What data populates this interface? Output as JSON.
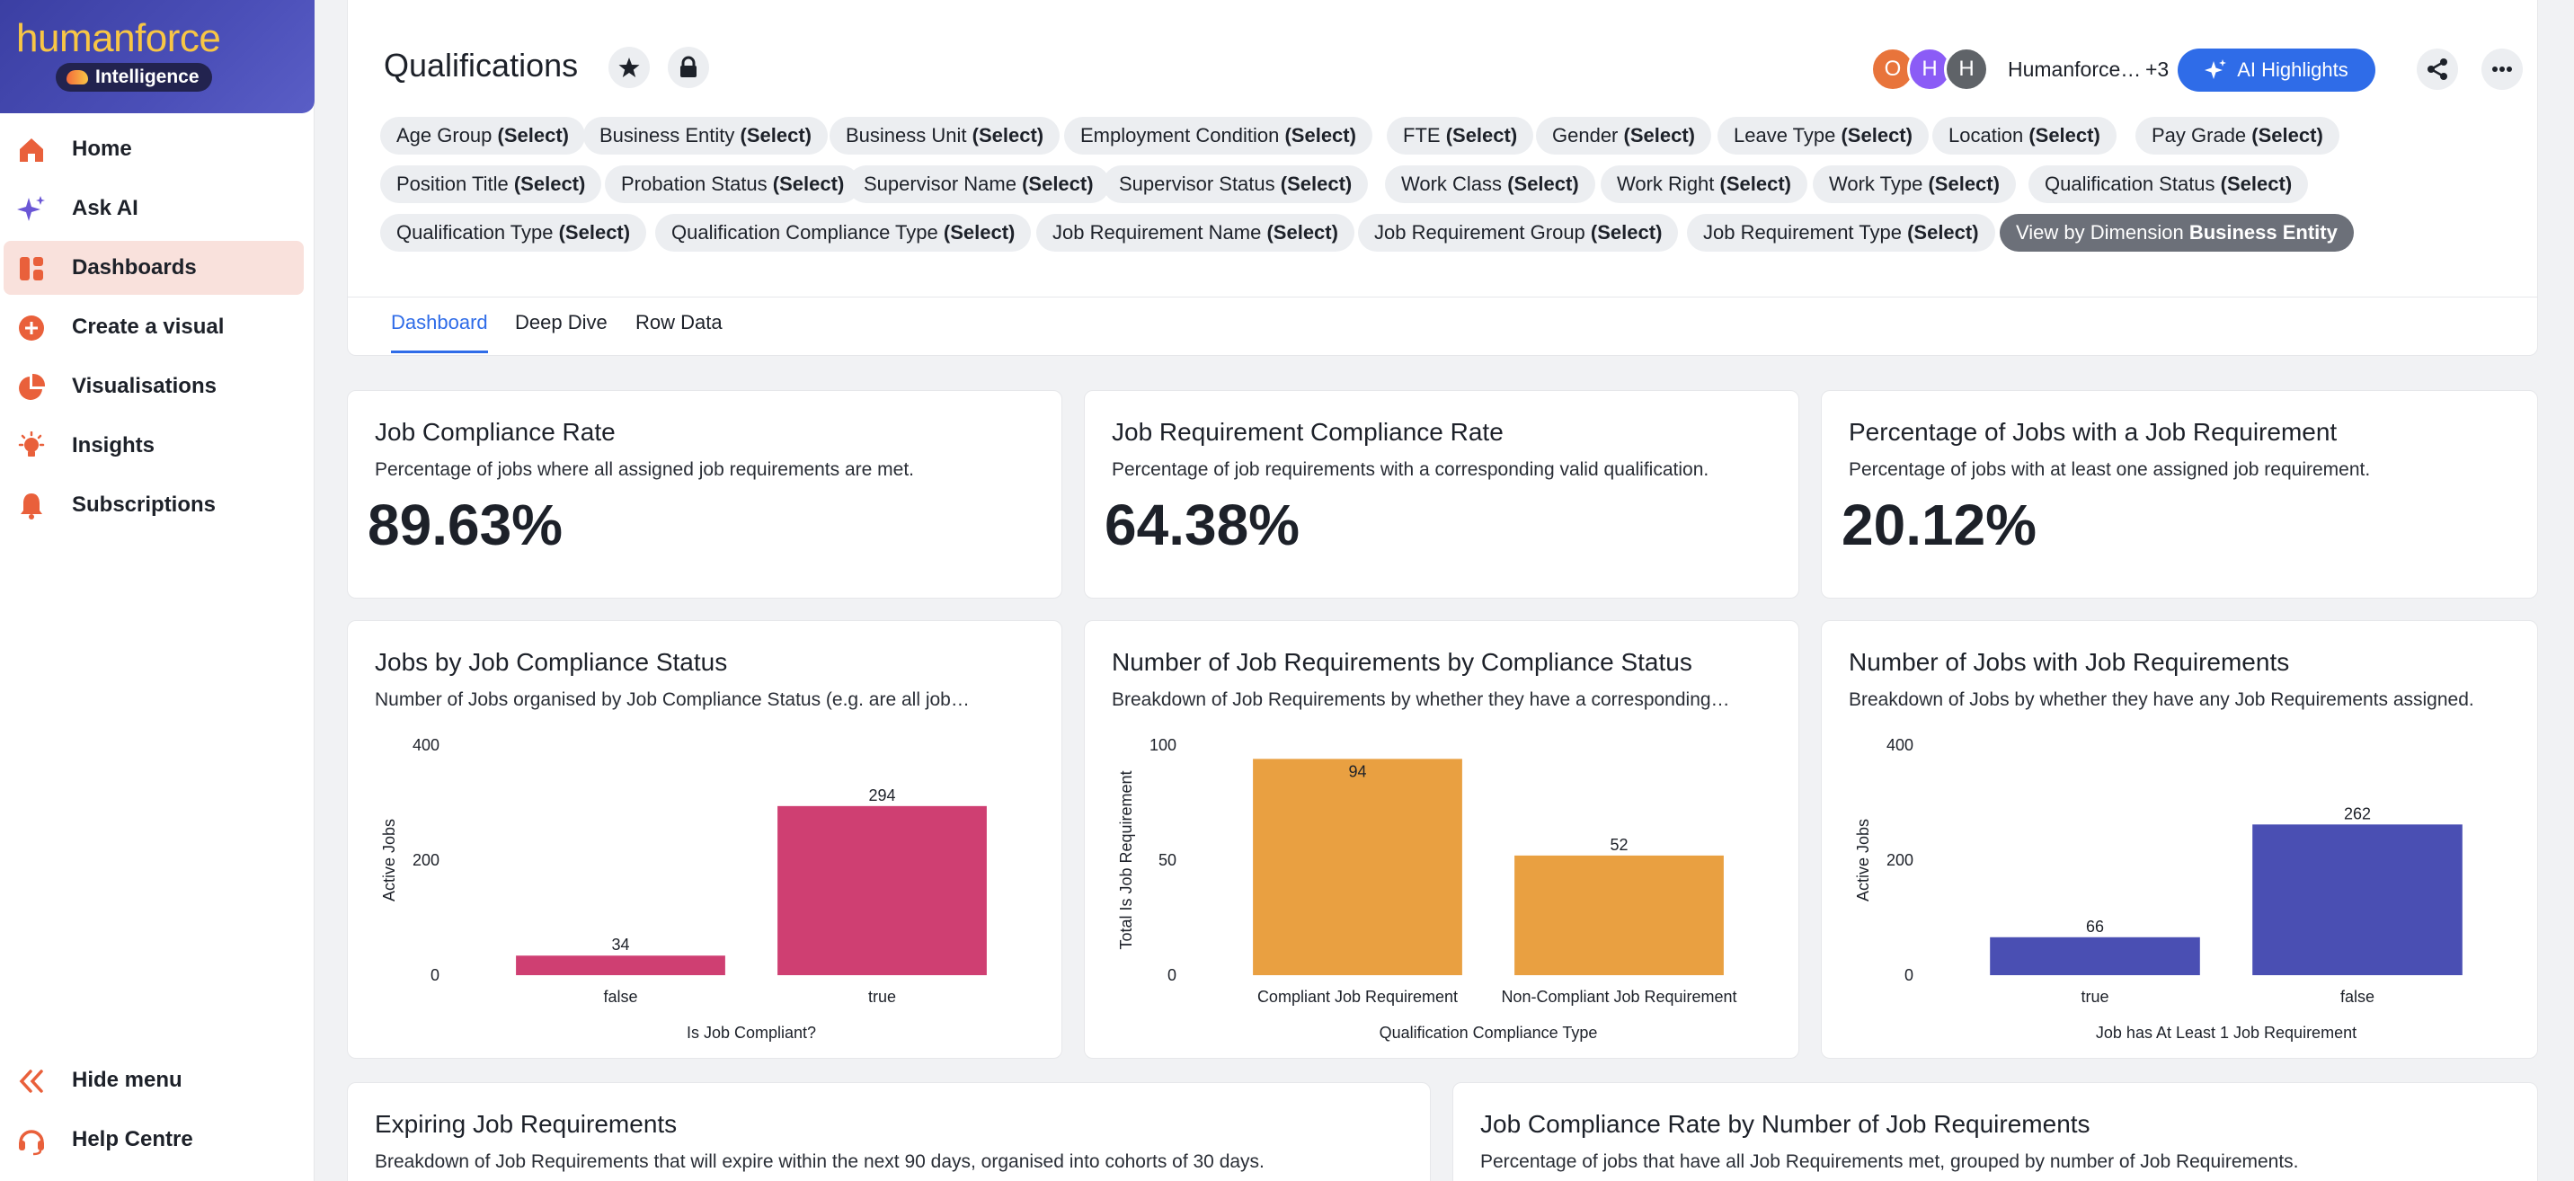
{
  "brand": {
    "wordmark": "humanforce",
    "badge": "Intelligence"
  },
  "nav": [
    {
      "label": "Home",
      "icon": "home-icon"
    },
    {
      "label": "Ask AI",
      "icon": "sparkle-icon"
    },
    {
      "label": "Dashboards",
      "icon": "dashboard-icon"
    },
    {
      "label": "Create a visual",
      "icon": "plus-circle-icon"
    },
    {
      "label": "Visualisations",
      "icon": "pie-icon"
    },
    {
      "label": "Insights",
      "icon": "lightbulb-icon"
    },
    {
      "label": "Subscriptions",
      "icon": "bell-icon"
    }
  ],
  "nav_bottom": [
    {
      "label": "Hide menu",
      "icon": "double-chevron-left-icon"
    },
    {
      "label": "Help Centre",
      "icon": "headset-icon"
    }
  ],
  "header": {
    "title": "Qualifications",
    "collaborators": [
      "O",
      "H",
      "H"
    ],
    "collab_colors": [
      "#e8743b",
      "#8b5cf6",
      "#5f6368"
    ],
    "collab_name": "Humanforce…",
    "collab_more": "+3",
    "ai_button": "AI Highlights"
  },
  "filters": [
    {
      "label": "Age Group",
      "value": "(Select)"
    },
    {
      "label": "Business Entity",
      "value": "(Select)"
    },
    {
      "label": "Business Unit",
      "value": "(Select)"
    },
    {
      "label": "Employment Condition",
      "value": "(Select)"
    },
    {
      "label": "FTE",
      "value": "(Select)"
    },
    {
      "label": "Gender",
      "value": "(Select)"
    },
    {
      "label": "Leave Type",
      "value": "(Select)"
    },
    {
      "label": "Location",
      "value": "(Select)"
    },
    {
      "label": "Pay Grade",
      "value": "(Select)"
    },
    {
      "label": "Position Title",
      "value": "(Select)"
    },
    {
      "label": "Probation Status",
      "value": "(Select)"
    },
    {
      "label": "Supervisor Name",
      "value": "(Select)"
    },
    {
      "label": "Supervisor Status",
      "value": "(Select)"
    },
    {
      "label": "Work Class",
      "value": "(Select)"
    },
    {
      "label": "Work Right",
      "value": "(Select)"
    },
    {
      "label": "Work Type",
      "value": "(Select)"
    },
    {
      "label": "Qualification Status",
      "value": "(Select)"
    },
    {
      "label": "Qualification Type",
      "value": "(Select)"
    },
    {
      "label": "Qualification Compliance Type",
      "value": "(Select)"
    },
    {
      "label": "Job Requirement Name",
      "value": "(Select)"
    },
    {
      "label": "Job Requirement Group",
      "value": "(Select)"
    },
    {
      "label": "Job Requirement Type",
      "value": "(Select)"
    },
    {
      "label": "View by Dimension",
      "value": "Business Entity"
    }
  ],
  "tabs": [
    "Dashboard",
    "Deep Dive",
    "Row Data"
  ],
  "kpis": [
    {
      "title": "Job Compliance Rate",
      "subtitle": "Percentage of jobs where all assigned job requirements are met.",
      "value": "89.63%"
    },
    {
      "title": "Job Requirement Compliance Rate",
      "subtitle": "Percentage of job requirements with a corresponding valid qualification.",
      "value": "64.38%"
    },
    {
      "title": "Percentage of Jobs with a Job Requirement",
      "subtitle": "Percentage of jobs with at least one assigned job requirement.",
      "value": "20.12%"
    }
  ],
  "chart_cards": [
    {
      "title": "Jobs by Job Compliance Status",
      "subtitle": "Number of Jobs organised by Job Compliance Status (e.g. are all job…"
    },
    {
      "title": "Number of Job Requirements by Compliance Status",
      "subtitle": "Breakdown of Job Requirements by whether they have a corresponding…"
    },
    {
      "title": "Number of Jobs with Job Requirements",
      "subtitle": "Breakdown of Jobs by whether they have any Job Requirements assigned."
    }
  ],
  "bottom_cards": [
    {
      "title": "Expiring Job Requirements",
      "subtitle": "Breakdown of Job Requirements that will expire within the next 90 days, organised into cohorts of 30 days."
    },
    {
      "title": "Job Compliance Rate by Number of Job Requirements",
      "subtitle": "Percentage of jobs that have all Job Requirements met, grouped by number of Job Requirements."
    }
  ],
  "chart_data": [
    {
      "type": "bar",
      "categories": [
        "false",
        "true"
      ],
      "values": [
        34,
        294
      ],
      "xlabel": "Is Job Compliant?",
      "ylabel": "Active Jobs",
      "ylim": [
        0,
        400
      ],
      "yticks": [
        0,
        200,
        400
      ],
      "color": "#cf3f72"
    },
    {
      "type": "bar",
      "categories": [
        "Compliant Job Requirement",
        "Non-Compliant Job Requirement"
      ],
      "values": [
        94,
        52
      ],
      "xlabel": "Qualification Compliance Type",
      "ylabel": "Total Is Job Requirement",
      "ylim": [
        0,
        100
      ],
      "yticks": [
        0,
        50,
        100
      ],
      "color": "#e9a041"
    },
    {
      "type": "bar",
      "categories": [
        "true",
        "false"
      ],
      "values": [
        66,
        262
      ],
      "xlabel": "Job has At Least 1 Job Requirement",
      "ylabel": "Active Jobs",
      "ylim": [
        0,
        400
      ],
      "yticks": [
        0,
        200,
        400
      ],
      "color": "#4a4fb3"
    }
  ]
}
